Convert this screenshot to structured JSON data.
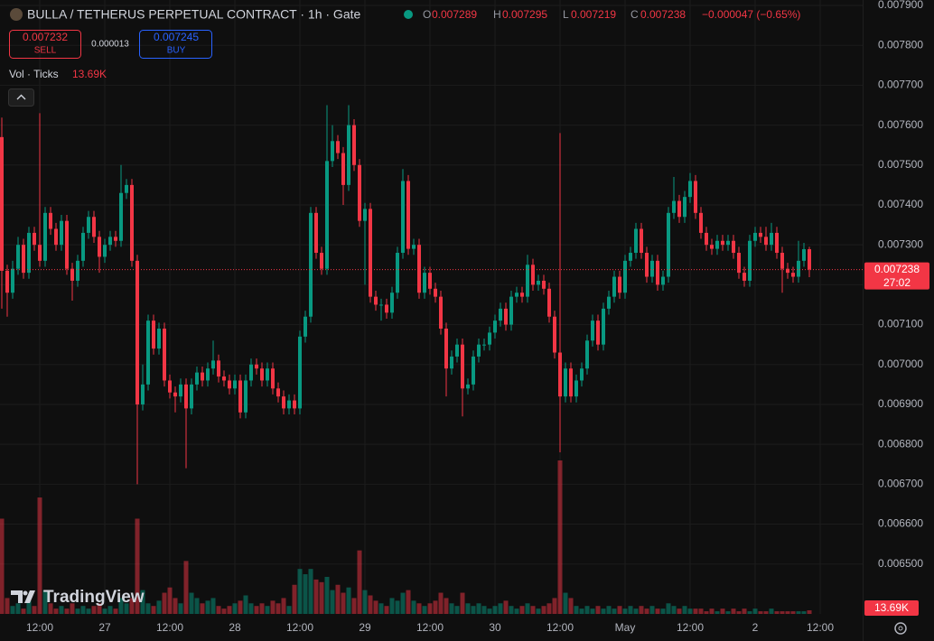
{
  "chart_data": {
    "type": "candlestick",
    "title": "BULLA / TETHERUS PERPETUAL CONTRACT · 1h · Gate",
    "readout_keys": [
      "O",
      "H",
      "L",
      "C"
    ],
    "change": "−0.000047 (−0.65%)",
    "sell_price": "0.007232",
    "sell": "SELL",
    "spread": "0.000013",
    "buy_price": "0.007245",
    "buy": "BUY",
    "volume_indicator": "Vol · Ticks",
    "volume_label": "13.69K",
    "countdown": "27:02",
    "logo": "TradingView",
    "up_color": "#089981",
    "down_color": "#f23645",
    "ylim": [
      0.006375,
      0.0079
    ],
    "yticks": [
      {
        "value": 0.0065,
        "label": "0.006500"
      },
      {
        "value": 0.0066,
        "label": "0.006600"
      },
      {
        "value": 0.0067,
        "label": "0.006700"
      },
      {
        "value": 0.0068,
        "label": "0.006800"
      },
      {
        "value": 0.0069,
        "label": "0.006900"
      },
      {
        "value": 0.007,
        "label": "0.007000"
      },
      {
        "value": 0.0071,
        "label": "0.007100"
      },
      {
        "value": 0.0072,
        "label": "0.007200"
      },
      {
        "value": 0.0073,
        "label": "0.007300"
      },
      {
        "value": 0.0074,
        "label": "0.007400"
      },
      {
        "value": 0.0075,
        "label": "0.007500"
      },
      {
        "value": 0.0076,
        "label": "0.007600"
      },
      {
        "value": 0.0077,
        "label": "0.007700"
      },
      {
        "value": 0.0078,
        "label": "0.007800"
      },
      {
        "value": 0.0079,
        "label": "0.007900"
      }
    ],
    "grid": true,
    "categories": [
      null,
      null,
      null,
      null,
      null,
      null,
      null,
      "12:00",
      null,
      null,
      null,
      null,
      null,
      null,
      null,
      null,
      null,
      null,
      null,
      "27",
      null,
      null,
      null,
      null,
      null,
      null,
      null,
      null,
      null,
      null,
      null,
      "12:00",
      null,
      null,
      null,
      null,
      null,
      null,
      null,
      null,
      null,
      null,
      null,
      "28",
      null,
      null,
      null,
      null,
      null,
      null,
      null,
      null,
      null,
      null,
      null,
      "12:00",
      null,
      null,
      null,
      null,
      null,
      null,
      null,
      null,
      null,
      null,
      null,
      "29",
      null,
      null,
      null,
      null,
      null,
      null,
      null,
      null,
      null,
      null,
      null,
      "12:00",
      null,
      null,
      null,
      null,
      null,
      null,
      null,
      null,
      null,
      null,
      null,
      "30",
      null,
      null,
      null,
      null,
      null,
      null,
      null,
      null,
      null,
      null,
      null,
      "12:00",
      null,
      null,
      null,
      null,
      null,
      null,
      null,
      null,
      null,
      null,
      null,
      "May",
      null,
      null,
      null,
      null,
      null,
      null,
      null,
      null,
      null,
      null,
      null,
      "12:00",
      null,
      null,
      null,
      null,
      null,
      null,
      null,
      null,
      null,
      null,
      null,
      "2",
      null,
      null,
      null,
      null,
      null,
      null,
      null,
      null,
      null,
      null,
      null,
      "12:00"
    ],
    "open": [
      0.00757,
      0.007235,
      0.00718,
      0.00724,
      0.0073,
      0.00723,
      0.00733,
      0.0073,
      0.00726,
      0.00738,
      0.00734,
      0.0073,
      0.00736,
      0.00724,
      0.00721,
      0.00726,
      0.00733,
      0.00737,
      0.00732,
      0.00727,
      0.0073,
      0.00732,
      0.00731,
      0.00743,
      0.00745,
      0.00726,
      0.0069,
      0.00695,
      0.00711,
      0.00704,
      0.00709,
      0.00696,
      0.00693,
      0.00692,
      0.00695,
      0.00689,
      0.00695,
      0.00698,
      0.00696,
      0.00699,
      0.00701,
      0.00697,
      0.00696,
      0.00694,
      0.00696,
      0.00688,
      0.00696,
      0.007,
      0.00699,
      0.00696,
      0.00699,
      0.00694,
      0.00692,
      0.00689,
      0.00691,
      0.00689,
      0.00707,
      0.00712,
      0.00738,
      0.00728,
      0.00724,
      0.00751,
      0.00756,
      0.00753,
      0.00745,
      0.0076,
      0.0075,
      0.00736,
      0.00739,
      0.00717,
      0.00715,
      0.00715,
      0.00713,
      0.00718,
      0.00728,
      0.00746,
      0.00729,
      0.0073,
      0.00718,
      0.00723,
      0.00719,
      0.00717,
      0.00709,
      0.00699,
      0.00702,
      0.00705,
      0.00694,
      0.00695,
      0.00702,
      0.00705,
      0.00705,
      0.00708,
      0.00711,
      0.00714,
      0.0071,
      0.00717,
      0.00718,
      0.00717,
      0.00725,
      0.0072,
      0.00721,
      0.00719,
      0.00712,
      0.00703,
      0.00692,
      0.00699,
      0.00692,
      0.00696,
      0.00699,
      0.00706,
      0.00711,
      0.00705,
      0.00714,
      0.00717,
      0.00722,
      0.00718,
      0.00726,
      0.00728,
      0.00734,
      0.00728,
      0.00722,
      0.00726,
      0.0072,
      0.00722,
      0.00738,
      0.00741,
      0.00737,
      0.00742,
      0.00746,
      0.00738,
      0.00733,
      0.0073,
      0.00729,
      0.00731,
      0.0073,
      0.00731,
      0.00728,
      0.00723,
      0.00721,
      0.00731,
      0.00733,
      0.00732,
      0.0073,
      0.00733,
      0.00728,
      0.00724,
      0.00723,
      0.00722,
      0.00726,
      0.007289,
      null,
      null
    ],
    "high": [
      0.007619,
      0.00725,
      0.00726,
      0.00732,
      0.007315,
      0.007345,
      0.007345,
      0.00763,
      0.007395,
      0.007395,
      0.007355,
      0.007375,
      0.007375,
      0.007255,
      0.007275,
      0.007345,
      0.007385,
      0.007385,
      0.007335,
      0.007315,
      0.007335,
      0.007335,
      0.0075,
      0.007465,
      0.007465,
      0.007275,
      0.007,
      0.007125,
      0.007125,
      0.007105,
      0.007105,
      0.006975,
      0.006945,
      0.006965,
      0.006965,
      0.006965,
      0.006995,
      0.006995,
      0.007005,
      0.00706,
      0.007025,
      0.006985,
      0.006975,
      0.006975,
      0.006975,
      0.006975,
      0.007015,
      0.007015,
      0.007005,
      0.007005,
      0.007005,
      0.006955,
      0.006935,
      0.006925,
      0.006925,
      0.007085,
      0.007135,
      0.007395,
      0.007395,
      0.007295,
      0.00765,
      0.0076,
      0.007575,
      0.007545,
      0.00765,
      0.007615,
      0.007515,
      0.007405,
      0.007405,
      0.007185,
      0.007165,
      0.007165,
      0.007195,
      0.007295,
      0.00749,
      0.007475,
      0.007315,
      0.007315,
      0.007245,
      0.007245,
      0.007205,
      0.007185,
      0.007105,
      0.007035,
      0.007065,
      0.007065,
      0.006965,
      0.007035,
      0.007065,
      0.007065,
      0.007095,
      0.007125,
      0.007155,
      0.007155,
      0.007185,
      0.007195,
      0.007195,
      0.007275,
      0.007265,
      0.007225,
      0.007225,
      0.007205,
      0.007135,
      0.00758,
      0.007005,
      0.007005,
      0.006975,
      0.007005,
      0.007075,
      0.007125,
      0.007125,
      0.007155,
      0.007185,
      0.007235,
      0.007235,
      0.007275,
      0.007295,
      0.007355,
      0.007355,
      0.007295,
      0.007275,
      0.007275,
      0.007235,
      0.007395,
      0.00747,
      0.007425,
      0.007435,
      0.00748,
      0.007475,
      0.007395,
      0.007345,
      0.007315,
      0.007325,
      0.007325,
      0.007325,
      0.007325,
      0.007295,
      0.007245,
      0.007325,
      0.007345,
      0.007345,
      0.007345,
      0.007355,
      0.007345,
      0.007295,
      0.007255,
      0.007245,
      0.00731,
      0.007305,
      0.007295,
      null,
      null
    ],
    "low": [
      0.00714,
      0.00712,
      0.007165,
      0.007225,
      0.007215,
      0.007215,
      0.007285,
      0.007245,
      0.007245,
      0.007325,
      0.007285,
      0.007285,
      0.007225,
      0.00716,
      0.007195,
      0.007245,
      0.007315,
      0.007305,
      0.00723,
      0.007255,
      0.007285,
      0.007295,
      0.007295,
      0.007415,
      0.007245,
      0.0067,
      0.006885,
      0.006935,
      0.007025,
      0.007025,
      0.006945,
      0.006915,
      0.00688,
      0.006905,
      0.00674,
      0.006875,
      0.006935,
      0.006945,
      0.006945,
      0.006975,
      0.006955,
      0.006945,
      0.006925,
      0.006925,
      0.006865,
      0.006865,
      0.006945,
      0.006975,
      0.006945,
      0.006945,
      0.006925,
      0.006905,
      0.006875,
      0.006875,
      0.006875,
      0.006875,
      0.007055,
      0.007105,
      0.007265,
      0.007225,
      0.007225,
      0.007495,
      0.007515,
      0.0074,
      0.007435,
      0.007485,
      0.007345,
      0.0072,
      0.007155,
      0.007135,
      0.00711,
      0.007115,
      0.007115,
      0.007165,
      0.007265,
      0.007275,
      0.007275,
      0.007165,
      0.007165,
      0.007175,
      0.007155,
      0.007075,
      0.00692,
      0.006975,
      0.007005,
      0.00687,
      0.006925,
      0.006935,
      0.007005,
      0.007035,
      0.007035,
      0.007065,
      0.007095,
      0.007085,
      0.007085,
      0.007155,
      0.007155,
      0.007155,
      0.007185,
      0.007185,
      0.007175,
      0.007105,
      0.007015,
      0.00678,
      0.006905,
      0.006905,
      0.006905,
      0.006945,
      0.006975,
      0.007045,
      0.007035,
      0.007035,
      0.007125,
      0.007155,
      0.007165,
      0.007165,
      0.007245,
      0.007265,
      0.007265,
      0.007205,
      0.007205,
      0.007185,
      0.007185,
      0.007205,
      0.007365,
      0.007355,
      0.007355,
      0.007405,
      0.007365,
      0.007315,
      0.007285,
      0.007275,
      0.007275,
      0.007285,
      0.007285,
      0.007265,
      0.007215,
      0.007195,
      0.007195,
      0.007295,
      0.007305,
      0.007285,
      0.007285,
      0.007265,
      0.00718,
      0.007215,
      0.007205,
      0.007205,
      0.007245,
      0.007219,
      null,
      null
    ],
    "close": [
      0.007235,
      0.00718,
      0.00724,
      0.0073,
      0.00723,
      0.00733,
      0.0073,
      0.00726,
      0.00738,
      0.00734,
      0.0073,
      0.00736,
      0.00724,
      0.00721,
      0.00726,
      0.00733,
      0.00737,
      0.00732,
      0.00727,
      0.0073,
      0.00732,
      0.00731,
      0.00743,
      0.00745,
      0.00726,
      0.0069,
      0.00695,
      0.00711,
      0.00704,
      0.00709,
      0.00696,
      0.00693,
      0.00692,
      0.00695,
      0.00689,
      0.00695,
      0.00698,
      0.00696,
      0.00699,
      0.00701,
      0.00697,
      0.00696,
      0.00694,
      0.00696,
      0.00688,
      0.00696,
      0.007,
      0.00699,
      0.00696,
      0.00699,
      0.00694,
      0.00692,
      0.00689,
      0.00691,
      0.00689,
      0.00707,
      0.00712,
      0.00738,
      0.00728,
      0.00724,
      0.00751,
      0.00756,
      0.00753,
      0.00745,
      0.0076,
      0.0075,
      0.00736,
      0.00739,
      0.00717,
      0.00715,
      0.00715,
      0.00713,
      0.00718,
      0.00728,
      0.00746,
      0.00729,
      0.0073,
      0.00718,
      0.00723,
      0.00719,
      0.00717,
      0.00709,
      0.00699,
      0.00702,
      0.00705,
      0.00694,
      0.00695,
      0.00702,
      0.00705,
      0.00705,
      0.00708,
      0.00711,
      0.00714,
      0.0071,
      0.00717,
      0.00718,
      0.00717,
      0.00725,
      0.0072,
      0.00721,
      0.00719,
      0.00712,
      0.00703,
      0.00692,
      0.00699,
      0.00692,
      0.00696,
      0.00699,
      0.00706,
      0.00711,
      0.00705,
      0.00714,
      0.00717,
      0.00722,
      0.00718,
      0.00726,
      0.00728,
      0.00734,
      0.00728,
      0.00722,
      0.00726,
      0.0072,
      0.00722,
      0.00738,
      0.00741,
      0.00737,
      0.00742,
      0.00746,
      0.00738,
      0.00733,
      0.0073,
      0.00729,
      0.00731,
      0.0073,
      0.00731,
      0.00728,
      0.00723,
      0.00721,
      0.00731,
      0.00733,
      0.00732,
      0.0073,
      0.00733,
      0.00728,
      0.00724,
      0.00723,
      0.00722,
      0.00726,
      0.007289,
      0.007238,
      null,
      null
    ],
    "volume": [
      360000,
      60000,
      30000,
      40000,
      20000,
      50000,
      30000,
      440000,
      90000,
      40000,
      20000,
      30000,
      20000,
      40000,
      20000,
      30000,
      20000,
      30000,
      40000,
      20000,
      30000,
      20000,
      60000,
      40000,
      60000,
      360000,
      90000,
      40000,
      30000,
      50000,
      80000,
      100000,
      60000,
      40000,
      200000,
      80000,
      60000,
      40000,
      50000,
      60000,
      30000,
      20000,
      30000,
      40000,
      50000,
      70000,
      40000,
      30000,
      40000,
      30000,
      50000,
      40000,
      60000,
      30000,
      110000,
      170000,
      150000,
      170000,
      130000,
      120000,
      140000,
      90000,
      110000,
      80000,
      100000,
      60000,
      240000,
      90000,
      70000,
      50000,
      40000,
      30000,
      60000,
      50000,
      80000,
      90000,
      50000,
      40000,
      30000,
      40000,
      50000,
      80000,
      60000,
      40000,
      30000,
      80000,
      40000,
      30000,
      40000,
      30000,
      20000,
      30000,
      40000,
      50000,
      30000,
      20000,
      30000,
      40000,
      30000,
      20000,
      30000,
      40000,
      60000,
      580000,
      80000,
      60000,
      30000,
      20000,
      30000,
      20000,
      30000,
      20000,
      30000,
      20000,
      30000,
      20000,
      30000,
      20000,
      30000,
      20000,
      30000,
      20000,
      20000,
      40000,
      30000,
      20000,
      30000,
      20000,
      20000,
      20000,
      10000,
      20000,
      10000,
      20000,
      10000,
      20000,
      10000,
      20000,
      10000,
      20000,
      10000,
      10000,
      20000,
      10000,
      10000,
      10000,
      10000,
      10000,
      10000,
      13690,
      null,
      null
    ]
  }
}
